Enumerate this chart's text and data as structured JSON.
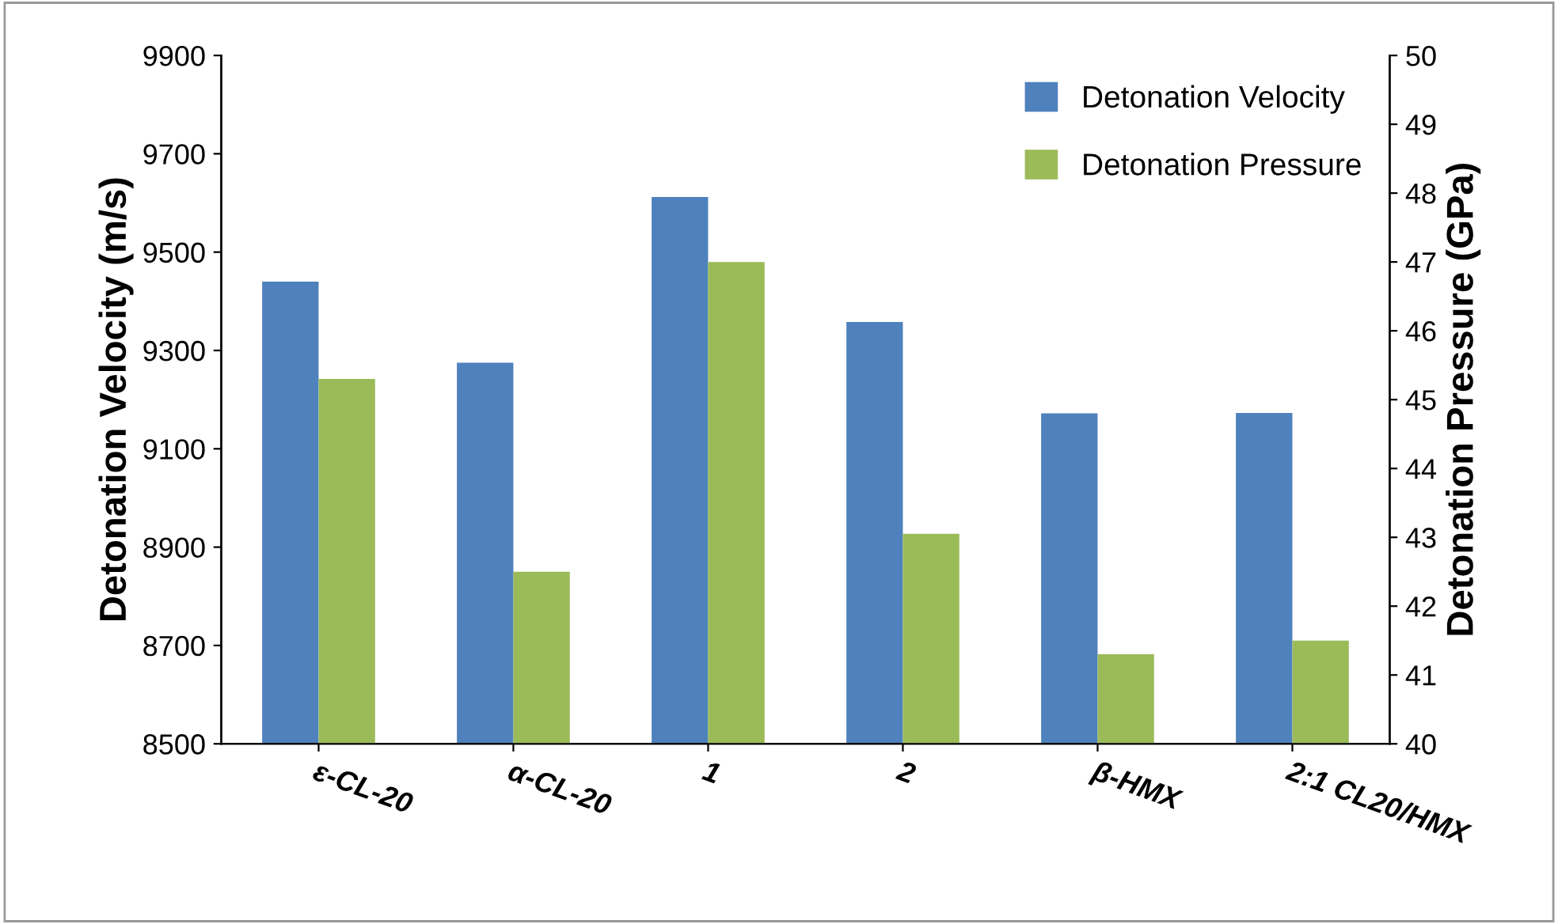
{
  "chart_data": {
    "type": "bar",
    "categories": [
      "ε-CL-20",
      "α-CL-20",
      "1",
      "2",
      "β-HMX",
      "2:1 CL20/HMX"
    ],
    "series": [
      {
        "name": "Detonation Velocity",
        "color": "#4f81bd",
        "values": [
          9440,
          9275,
          9612,
          9358,
          9172,
          9173
        ]
      },
      {
        "name": "Detonation Pressure",
        "color": "#9bbb59",
        "axis": "y2",
        "values": [
          45.3,
          42.5,
          47.0,
          43.05,
          41.3,
          41.5
        ]
      }
    ],
    "ylabel": "Detonation Velocity (m/s)",
    "y2label": "Detonation Pressure (GPa)",
    "ylim": [
      8500,
      9900
    ],
    "yticks": [
      8500,
      8700,
      8900,
      9100,
      9300,
      9500,
      9700,
      9900
    ],
    "y2lim": [
      40,
      50
    ],
    "y2ticks": [
      40,
      41,
      42,
      43,
      44,
      45,
      46,
      47,
      48,
      49,
      50
    ],
    "legend": "top right",
    "grid": false
  }
}
